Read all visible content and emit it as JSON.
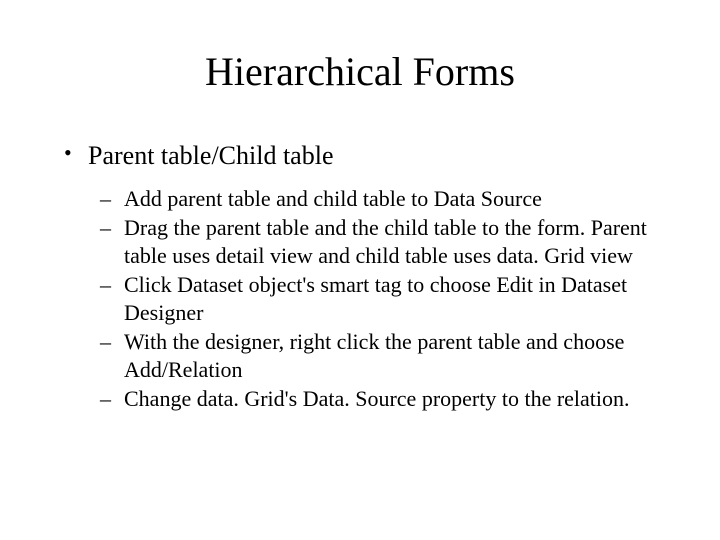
{
  "slide": {
    "title": "Hierarchical Forms",
    "title_fontsize": 40,
    "background_color": "#ffffff",
    "text_color": "#000000",
    "font_family": "Times New Roman",
    "bullets": {
      "level1": [
        {
          "text": "Parent table/Child table",
          "fontsize": 26,
          "marker": "•",
          "children": [
            {
              "text": "Add parent table and child table to Data Source"
            },
            {
              "text": "Drag the parent table and the child table to the form. Parent table uses detail view and child table uses data. Grid view"
            },
            {
              "text": "Click Dataset object's smart tag to choose Edit in Dataset Designer"
            },
            {
              "text": "With the designer, right click the parent table and choose Add/Relation"
            },
            {
              "text": "Change data. Grid's Data. Source property to the relation."
            }
          ],
          "child_fontsize": 22,
          "child_marker": "–"
        }
      ]
    }
  }
}
